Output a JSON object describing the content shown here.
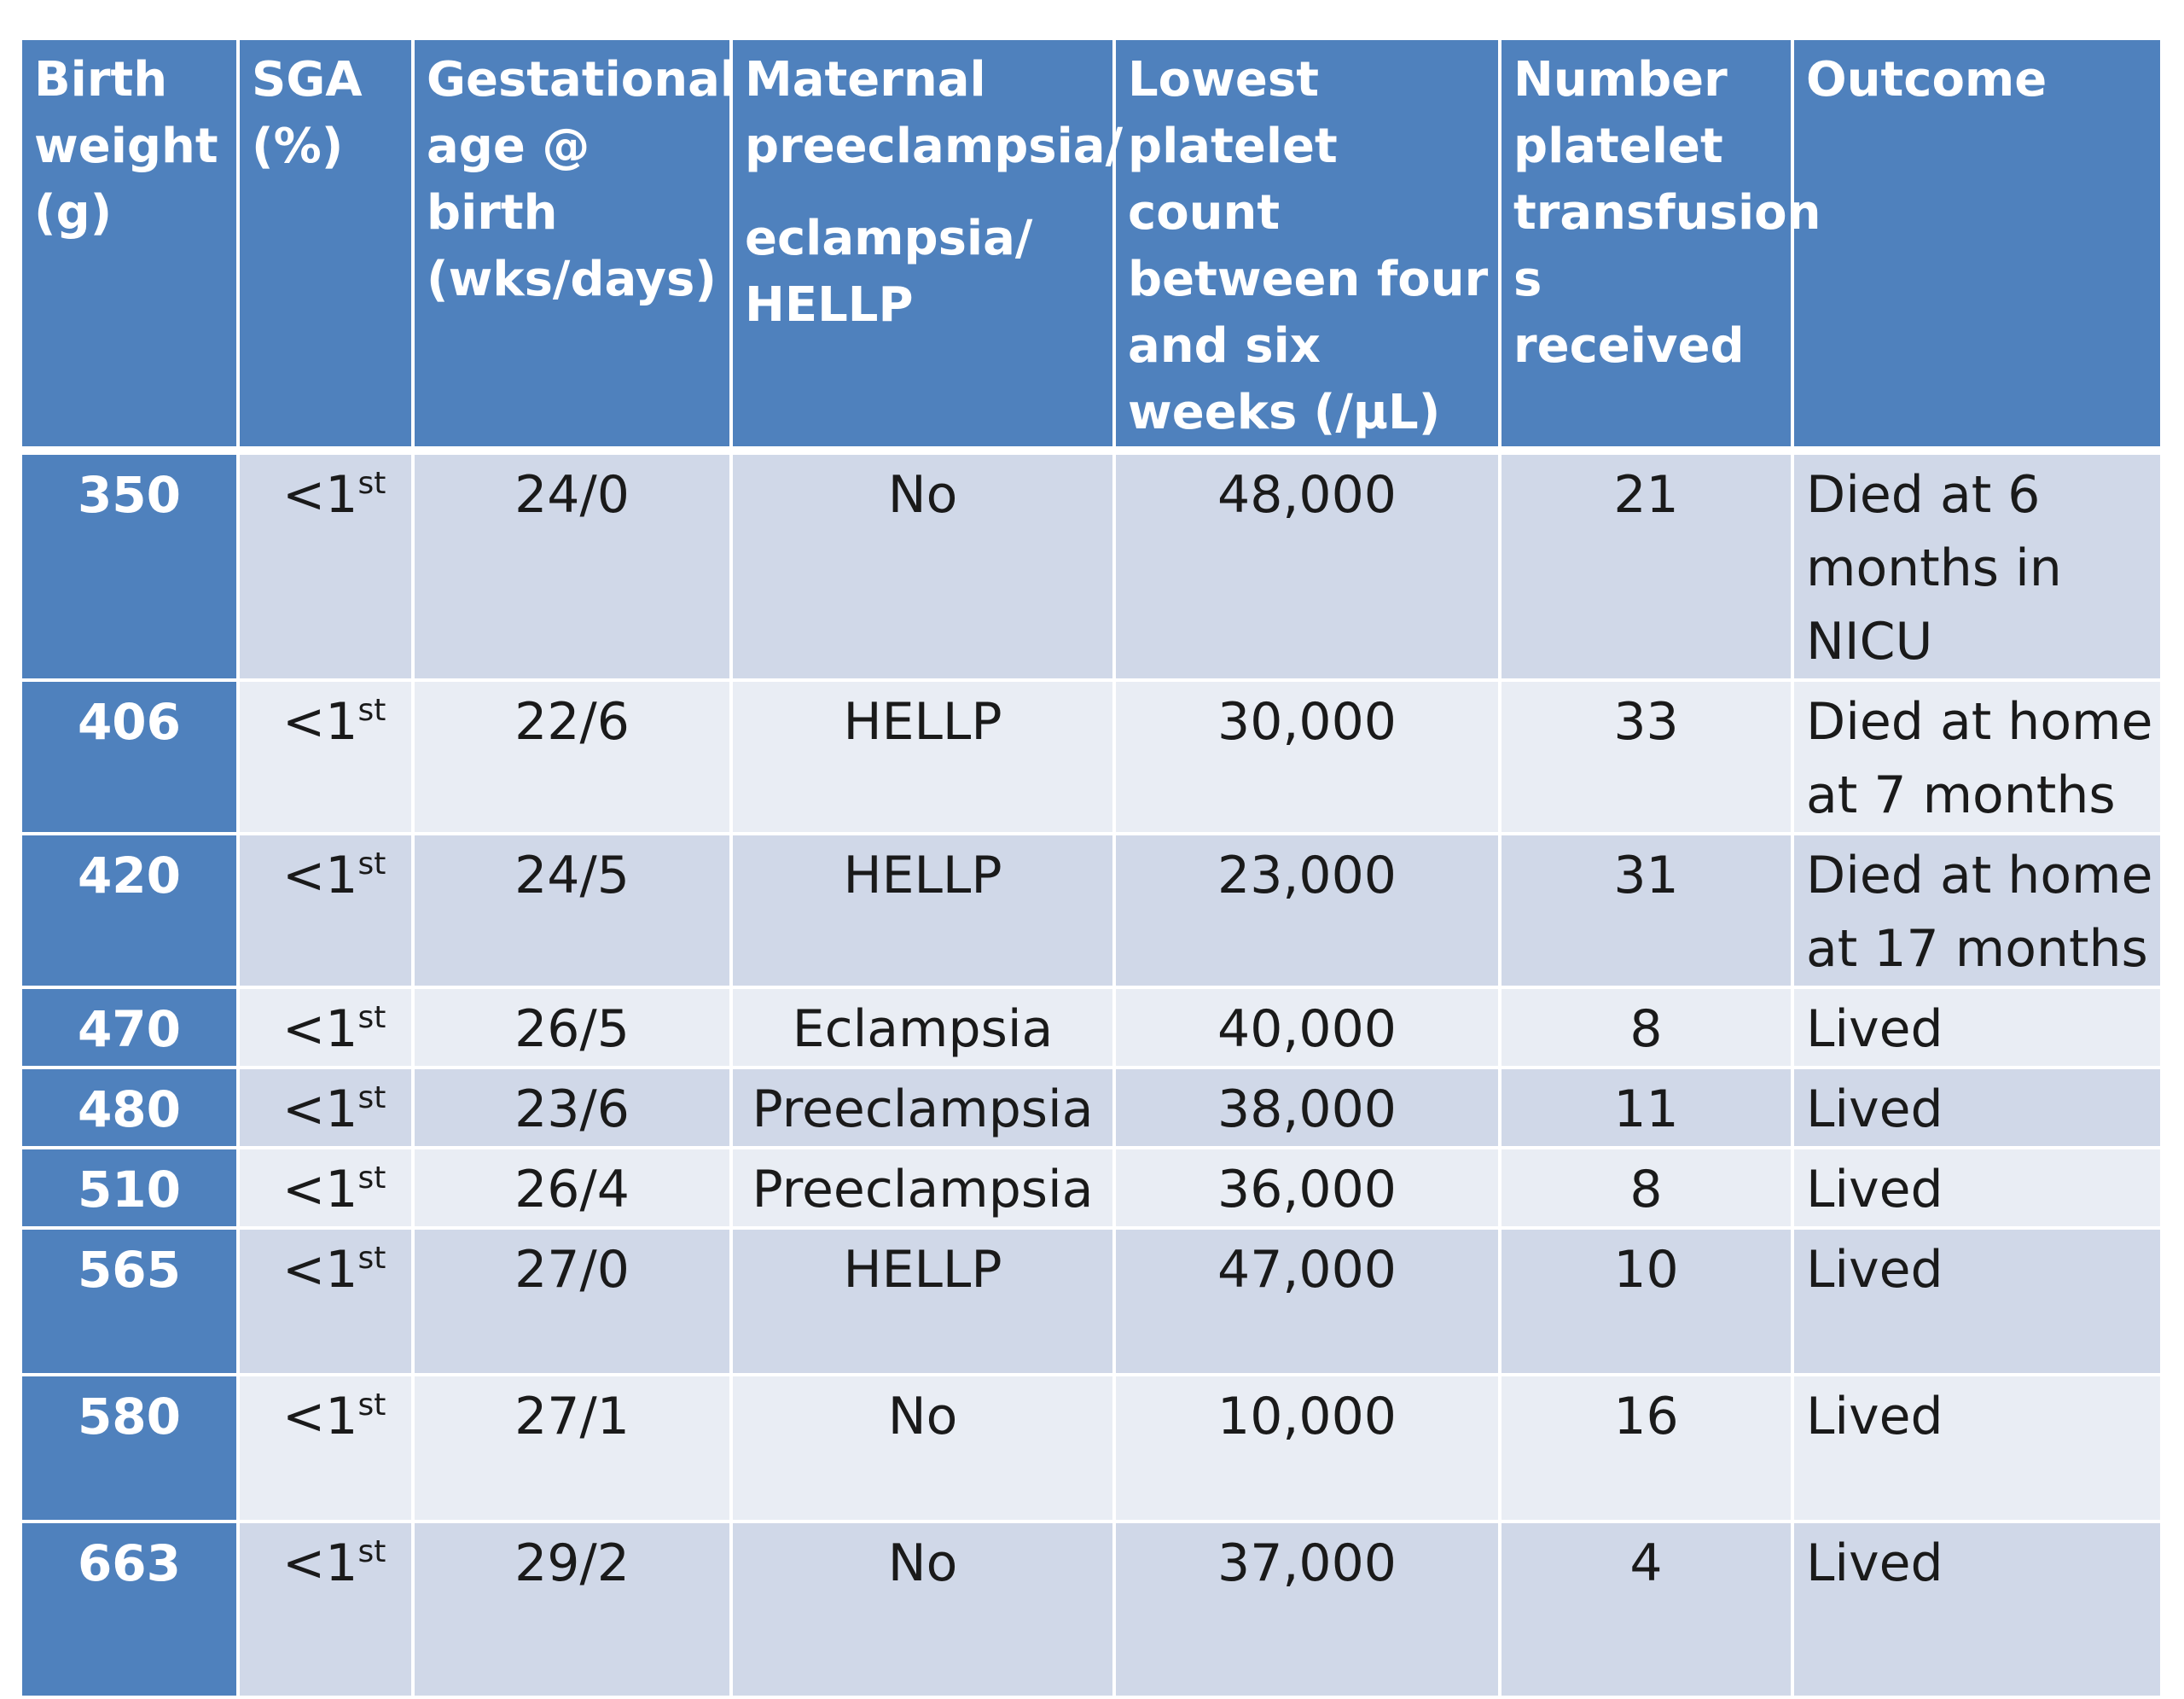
{
  "table": {
    "headers": {
      "birth_weight": "Birth weight (g)",
      "sga": "SGA (%)",
      "gestational_age": "Gestational age @ birth (wks/days)",
      "maternal_line1": "Maternal preeclampsia/",
      "maternal_line2": "eclampsia/ HELLP",
      "lowest_platelet": "Lowest platelet count between four and six weeks (/µL)",
      "transfusions": "Number platelet transfusion s received",
      "outcome": "Outcome"
    },
    "rows": [
      {
        "birth_weight": "350",
        "sga_value": "<1",
        "sga_sup": "st",
        "gestational_age": "24/0",
        "maternal": "No",
        "lowest_platelet": "48,000",
        "transfusions": "21",
        "outcome": "Died at 6 months in NICU"
      },
      {
        "birth_weight": "406",
        "sga_value": "<1",
        "sga_sup": "st",
        "gestational_age": "22/6",
        "maternal": "HELLP",
        "lowest_platelet": "30,000",
        "transfusions": "33",
        "outcome": "Died at home at 7 months"
      },
      {
        "birth_weight": "420",
        "sga_value": "<1",
        "sga_sup": "st",
        "gestational_age": "24/5",
        "maternal": "HELLP",
        "lowest_platelet": "23,000",
        "transfusions": "31",
        "outcome": "Died at home at 17 months"
      },
      {
        "birth_weight": "470",
        "sga_value": "<1",
        "sga_sup": "st",
        "gestational_age": "26/5",
        "maternal": "Eclampsia",
        "lowest_platelet": "40,000",
        "transfusions": "8",
        "outcome": "Lived"
      },
      {
        "birth_weight": "480",
        "sga_value": "<1",
        "sga_sup": "st",
        "gestational_age": "23/6",
        "maternal": "Preeclampsia",
        "lowest_platelet": "38,000",
        "transfusions": "11",
        "outcome": "Lived"
      },
      {
        "birth_weight": "510",
        "sga_value": "<1",
        "sga_sup": "st",
        "gestational_age": "26/4",
        "maternal": "Preeclampsia",
        "lowest_platelet": "36,000",
        "transfusions": "8",
        "outcome": "Lived"
      },
      {
        "birth_weight": "565",
        "sga_value": "<1",
        "sga_sup": "st",
        "gestational_age": "27/0",
        "maternal": "HELLP",
        "lowest_platelet": "47,000",
        "transfusions": "10",
        "outcome": "Lived"
      },
      {
        "birth_weight": "580",
        "sga_value": "<1",
        "sga_sup": "st",
        "gestational_age": "27/1",
        "maternal": "No",
        "lowest_platelet": "10,000",
        "transfusions": "16",
        "outcome": "Lived"
      },
      {
        "birth_weight": "663",
        "sga_value": "<1",
        "sga_sup": "st",
        "gestational_age": "29/2",
        "maternal": "No",
        "lowest_platelet": "37,000",
        "transfusions": "4",
        "outcome": "Lived"
      }
    ]
  },
  "colors": {
    "header_bg": "#4f81bd",
    "row_odd_bg": "#d0d8e8",
    "row_even_bg": "#e9edf4"
  }
}
